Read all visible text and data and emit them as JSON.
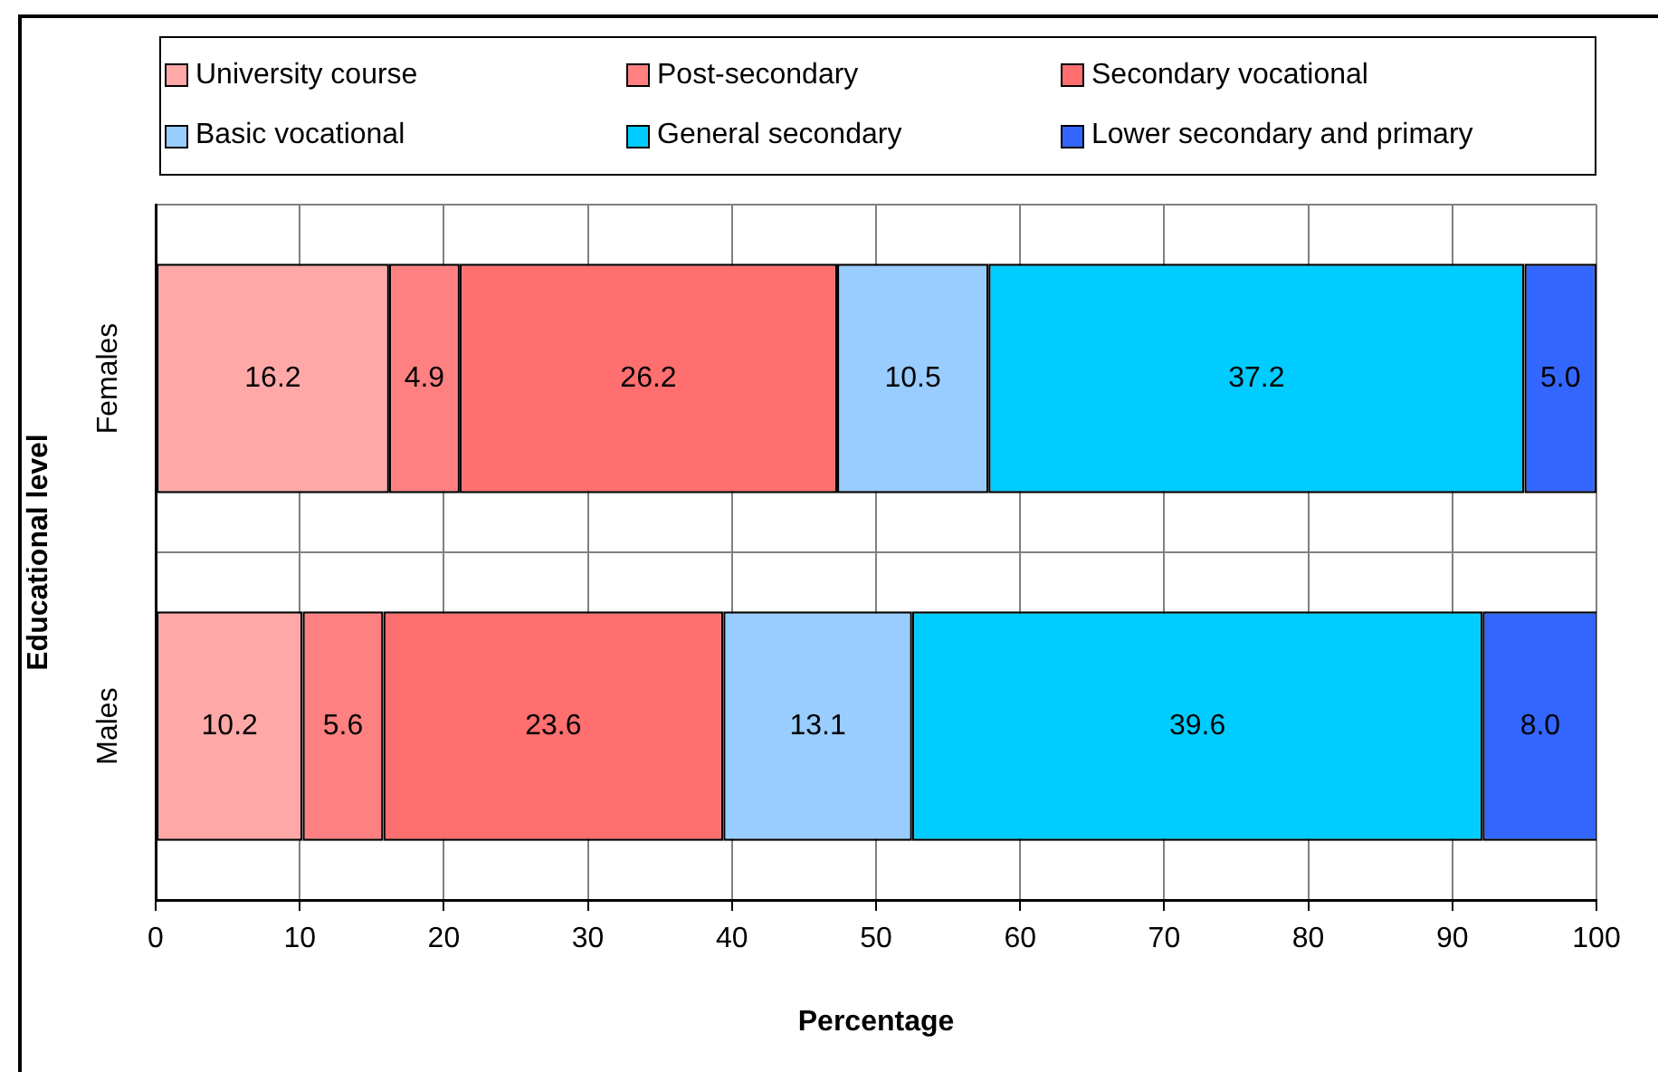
{
  "chart_data": {
    "type": "bar",
    "orientation": "horizontal",
    "stacked": true,
    "xlabel": "Percentage",
    "ylabel": "Educational level",
    "categories": [
      "Females",
      "Males"
    ],
    "series": [
      {
        "name": "University course",
        "color": "#ffa8a8",
        "values": [
          16.2,
          10.2
        ],
        "value_labels": [
          "16.2",
          "10.2"
        ]
      },
      {
        "name": "Post-secondary",
        "color": "#ff8080",
        "values": [
          4.9,
          5.6
        ],
        "value_labels": [
          "4.9",
          "5.6"
        ]
      },
      {
        "name": "Secondary vocational",
        "color": "#ff6f6f",
        "values": [
          26.2,
          23.6
        ],
        "value_labels": [
          "26.2",
          "23.6"
        ]
      },
      {
        "name": "Basic vocational",
        "color": "#99ccff",
        "values": [
          10.5,
          13.1
        ],
        "value_labels": [
          "10.5",
          "13.1"
        ]
      },
      {
        "name": "General secondary",
        "color": "#00ccff",
        "values": [
          37.2,
          39.6
        ],
        "value_labels": [
          "37.2",
          "39.6"
        ]
      },
      {
        "name": "Lower secondary and primary",
        "color": "#3366ff",
        "values": [
          5,
          8
        ],
        "value_labels": [
          "5.0",
          "8.0"
        ]
      }
    ],
    "xlim": [
      0,
      100
    ],
    "xticks": [
      0,
      10,
      20,
      30,
      40,
      50,
      60,
      70,
      80,
      90,
      100
    ],
    "grid": true,
    "legend": "top"
  }
}
